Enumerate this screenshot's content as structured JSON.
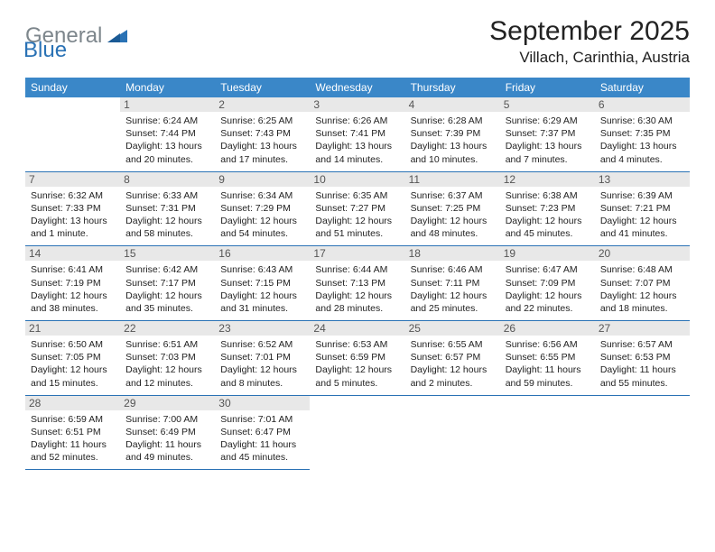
{
  "logo": {
    "part1": "General",
    "part2": "Blue"
  },
  "title": "September 2025",
  "location": "Villach, Carinthia, Austria",
  "colors": {
    "header_bg": "#3a87c8",
    "border": "#2a72b5",
    "daynum_bg": "#e8e8e8",
    "logo_gray": "#7d868c",
    "logo_blue": "#2a72b5",
    "page_bg": "#ffffff",
    "text": "#222222"
  },
  "weekdays": [
    "Sunday",
    "Monday",
    "Tuesday",
    "Wednesday",
    "Thursday",
    "Friday",
    "Saturday"
  ],
  "weeks": [
    [
      null,
      {
        "n": "1",
        "sr": "Sunrise: 6:24 AM",
        "ss": "Sunset: 7:44 PM",
        "dl": "Daylight: 13 hours and 20 minutes."
      },
      {
        "n": "2",
        "sr": "Sunrise: 6:25 AM",
        "ss": "Sunset: 7:43 PM",
        "dl": "Daylight: 13 hours and 17 minutes."
      },
      {
        "n": "3",
        "sr": "Sunrise: 6:26 AM",
        "ss": "Sunset: 7:41 PM",
        "dl": "Daylight: 13 hours and 14 minutes."
      },
      {
        "n": "4",
        "sr": "Sunrise: 6:28 AM",
        "ss": "Sunset: 7:39 PM",
        "dl": "Daylight: 13 hours and 10 minutes."
      },
      {
        "n": "5",
        "sr": "Sunrise: 6:29 AM",
        "ss": "Sunset: 7:37 PM",
        "dl": "Daylight: 13 hours and 7 minutes."
      },
      {
        "n": "6",
        "sr": "Sunrise: 6:30 AM",
        "ss": "Sunset: 7:35 PM",
        "dl": "Daylight: 13 hours and 4 minutes."
      }
    ],
    [
      {
        "n": "7",
        "sr": "Sunrise: 6:32 AM",
        "ss": "Sunset: 7:33 PM",
        "dl": "Daylight: 13 hours and 1 minute."
      },
      {
        "n": "8",
        "sr": "Sunrise: 6:33 AM",
        "ss": "Sunset: 7:31 PM",
        "dl": "Daylight: 12 hours and 58 minutes."
      },
      {
        "n": "9",
        "sr": "Sunrise: 6:34 AM",
        "ss": "Sunset: 7:29 PM",
        "dl": "Daylight: 12 hours and 54 minutes."
      },
      {
        "n": "10",
        "sr": "Sunrise: 6:35 AM",
        "ss": "Sunset: 7:27 PM",
        "dl": "Daylight: 12 hours and 51 minutes."
      },
      {
        "n": "11",
        "sr": "Sunrise: 6:37 AM",
        "ss": "Sunset: 7:25 PM",
        "dl": "Daylight: 12 hours and 48 minutes."
      },
      {
        "n": "12",
        "sr": "Sunrise: 6:38 AM",
        "ss": "Sunset: 7:23 PM",
        "dl": "Daylight: 12 hours and 45 minutes."
      },
      {
        "n": "13",
        "sr": "Sunrise: 6:39 AM",
        "ss": "Sunset: 7:21 PM",
        "dl": "Daylight: 12 hours and 41 minutes."
      }
    ],
    [
      {
        "n": "14",
        "sr": "Sunrise: 6:41 AM",
        "ss": "Sunset: 7:19 PM",
        "dl": "Daylight: 12 hours and 38 minutes."
      },
      {
        "n": "15",
        "sr": "Sunrise: 6:42 AM",
        "ss": "Sunset: 7:17 PM",
        "dl": "Daylight: 12 hours and 35 minutes."
      },
      {
        "n": "16",
        "sr": "Sunrise: 6:43 AM",
        "ss": "Sunset: 7:15 PM",
        "dl": "Daylight: 12 hours and 31 minutes."
      },
      {
        "n": "17",
        "sr": "Sunrise: 6:44 AM",
        "ss": "Sunset: 7:13 PM",
        "dl": "Daylight: 12 hours and 28 minutes."
      },
      {
        "n": "18",
        "sr": "Sunrise: 6:46 AM",
        "ss": "Sunset: 7:11 PM",
        "dl": "Daylight: 12 hours and 25 minutes."
      },
      {
        "n": "19",
        "sr": "Sunrise: 6:47 AM",
        "ss": "Sunset: 7:09 PM",
        "dl": "Daylight: 12 hours and 22 minutes."
      },
      {
        "n": "20",
        "sr": "Sunrise: 6:48 AM",
        "ss": "Sunset: 7:07 PM",
        "dl": "Daylight: 12 hours and 18 minutes."
      }
    ],
    [
      {
        "n": "21",
        "sr": "Sunrise: 6:50 AM",
        "ss": "Sunset: 7:05 PM",
        "dl": "Daylight: 12 hours and 15 minutes."
      },
      {
        "n": "22",
        "sr": "Sunrise: 6:51 AM",
        "ss": "Sunset: 7:03 PM",
        "dl": "Daylight: 12 hours and 12 minutes."
      },
      {
        "n": "23",
        "sr": "Sunrise: 6:52 AM",
        "ss": "Sunset: 7:01 PM",
        "dl": "Daylight: 12 hours and 8 minutes."
      },
      {
        "n": "24",
        "sr": "Sunrise: 6:53 AM",
        "ss": "Sunset: 6:59 PM",
        "dl": "Daylight: 12 hours and 5 minutes."
      },
      {
        "n": "25",
        "sr": "Sunrise: 6:55 AM",
        "ss": "Sunset: 6:57 PM",
        "dl": "Daylight: 12 hours and 2 minutes."
      },
      {
        "n": "26",
        "sr": "Sunrise: 6:56 AM",
        "ss": "Sunset: 6:55 PM",
        "dl": "Daylight: 11 hours and 59 minutes."
      },
      {
        "n": "27",
        "sr": "Sunrise: 6:57 AM",
        "ss": "Sunset: 6:53 PM",
        "dl": "Daylight: 11 hours and 55 minutes."
      }
    ],
    [
      {
        "n": "28",
        "sr": "Sunrise: 6:59 AM",
        "ss": "Sunset: 6:51 PM",
        "dl": "Daylight: 11 hours and 52 minutes."
      },
      {
        "n": "29",
        "sr": "Sunrise: 7:00 AM",
        "ss": "Sunset: 6:49 PM",
        "dl": "Daylight: 11 hours and 49 minutes."
      },
      {
        "n": "30",
        "sr": "Sunrise: 7:01 AM",
        "ss": "Sunset: 6:47 PM",
        "dl": "Daylight: 11 hours and 45 minutes."
      },
      null,
      null,
      null,
      null
    ]
  ]
}
